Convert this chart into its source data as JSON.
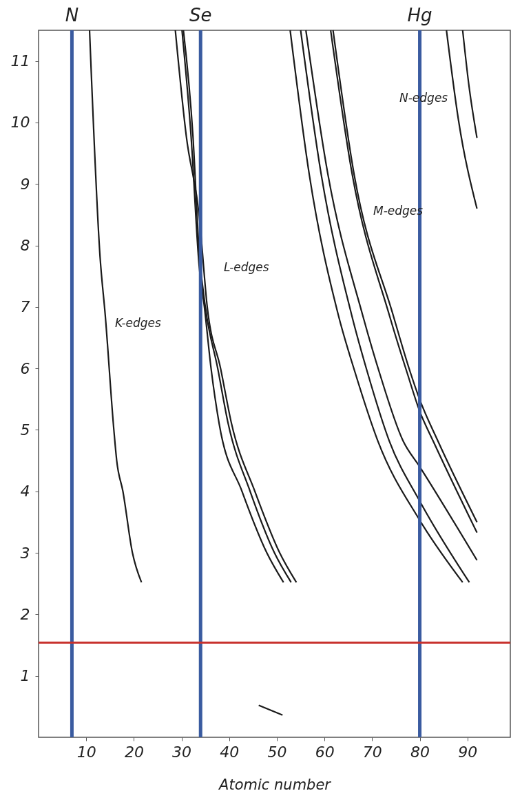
{
  "chart_data": {
    "type": "line",
    "xlabel": "Atomic number",
    "xlim": [
      0,
      99
    ],
    "ylim": [
      0,
      11.5
    ],
    "xticks": [
      10,
      20,
      30,
      40,
      50,
      60,
      70,
      80,
      90
    ],
    "yticks": [
      1,
      2,
      3,
      4,
      5,
      6,
      7,
      8,
      9,
      10,
      11
    ],
    "line_style": "solid",
    "series": [
      {
        "color": "#1a1a1a",
        "x": [
          10.7,
          12.9,
          14.0,
          15.8,
          16.4,
          17.7,
          19.7,
          21.6,
          null,
          46.2,
          51.2
        ],
        "values": [
          11.5,
          7.82,
          6.86,
          5.0,
          4.5,
          4.0,
          3.0,
          2.52,
          null,
          0.52,
          0.36
        ]
      },
      {
        "color": "#1a1a1a",
        "x": [
          28.7,
          31.0,
          33.7,
          35.4,
          38.2,
          40.5,
          45.4,
          50.6,
          54.1
        ],
        "values": [
          11.5,
          9.78,
          8.49,
          7.0,
          6.0,
          5.1,
          4.0,
          3.0,
          2.52
        ]
      },
      {
        "color": "#1a1a1a",
        "x": [
          30.1,
          32.0,
          33.7,
          34.8,
          36.2,
          37.9,
          42.7,
          47.9,
          51.4
        ],
        "values": [
          11.5,
          9.78,
          7.67,
          7.0,
          6.0,
          5.1,
          4.0,
          3.0,
          2.52
        ]
      },
      {
        "color": "#1a1a1a",
        "x": [
          30.4,
          32.4,
          33.7,
          35.0,
          37.6,
          39.8,
          44.4,
          49.5,
          53.0
        ],
        "values": [
          11.5,
          9.78,
          7.9,
          7.0,
          6.0,
          5.1,
          4.0,
          3.0,
          2.52
        ]
      },
      {
        "color": "#1a1a1a",
        "x": [
          52.8,
          56.7,
          62.9,
          66.4,
          71.2,
          80,
          89.0
        ],
        "values": [
          11.5,
          9.21,
          6.87,
          5.94,
          4.82,
          3.53,
          2.52
        ]
      },
      {
        "color": "#1a1a1a",
        "x": [
          55.0,
          59.2,
          65.7,
          69.0,
          73.6,
          80,
          90.4
        ],
        "values": [
          11.5,
          9.21,
          6.87,
          5.94,
          4.82,
          3.84,
          2.52
        ]
      },
      {
        "color": "#1a1a1a",
        "x": [
          56.1,
          60.6,
          68.0,
          71.5,
          76.5,
          80,
          92
        ],
        "values": [
          11.5,
          9.21,
          6.87,
          5.94,
          4.82,
          4.4,
          2.88
        ]
      },
      {
        "color": "#1a1a1a",
        "x": [
          61.3,
          65.7,
          73.6,
          77.3,
          80,
          82.8,
          92
        ],
        "values": [
          11.5,
          9.21,
          6.87,
          5.94,
          5.3,
          4.82,
          3.33
        ]
      },
      {
        "color": "#1a1a1a",
        "x": [
          61.8,
          66.1,
          74.4,
          78.0,
          80,
          83.8,
          92
        ],
        "values": [
          11.5,
          9.21,
          6.87,
          5.94,
          5.49,
          4.82,
          3.5
        ]
      },
      {
        "color": "#1a1a1a",
        "x": [
          85.6,
          88.1,
          92
        ],
        "values": [
          11.5,
          10.05,
          8.6
        ]
      },
      {
        "color": "#1a1a1a",
        "x": [
          89.0,
          90.3,
          92
        ],
        "values": [
          11.5,
          10.61,
          9.75
        ]
      }
    ],
    "ref_lines": [
      {
        "axis": "x",
        "value": 7,
        "label": "N",
        "color": "#3a5ba0"
      },
      {
        "axis": "x",
        "value": 34,
        "label": "Se",
        "color": "#3a5ba0"
      },
      {
        "axis": "x",
        "value": 80,
        "label": "Hg",
        "color": "#3a5ba0"
      },
      {
        "axis": "y",
        "value": 1.54,
        "color": "#c8322d"
      }
    ],
    "annotations": [
      "K-edges",
      "L-edges",
      "M-edges",
      "N-edges"
    ]
  }
}
